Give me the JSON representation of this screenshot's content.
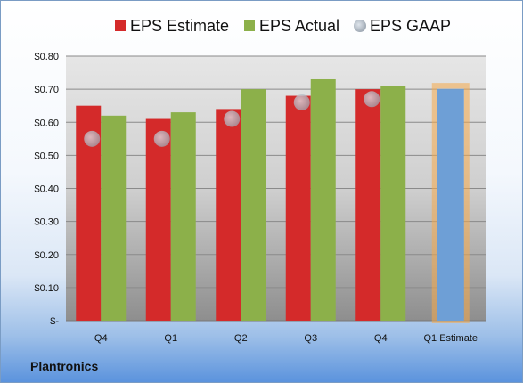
{
  "company": "Plantronics",
  "chart_data": {
    "type": "bar",
    "categories": [
      "Q4",
      "Q1",
      "Q2",
      "Q3",
      "Q4",
      "Q1 Estimate"
    ],
    "series": [
      {
        "name": "EPS Estimate",
        "values": [
          0.65,
          0.61,
          0.64,
          0.68,
          0.7,
          null
        ],
        "color": "#d42a2a"
      },
      {
        "name": "EPS Actual",
        "values": [
          0.62,
          0.63,
          0.7,
          0.73,
          0.71,
          null
        ],
        "color": "#8cb04a"
      },
      {
        "name": "EPS GAAP",
        "values": [
          0.55,
          0.55,
          0.61,
          0.66,
          0.67,
          null
        ],
        "color": "#c3ccd6",
        "marker": "circle"
      },
      {
        "name": "Q1 Estimate",
        "values": [
          null,
          null,
          null,
          null,
          null,
          0.7
        ],
        "color": "#6e9fd6",
        "border": "#f5a94a"
      }
    ],
    "yticks": [
      "$-",
      "$0.10",
      "$0.20",
      "$0.30",
      "$0.40",
      "$0.50",
      "$0.60",
      "$0.70",
      "$0.80"
    ],
    "ylim": [
      0,
      0.8
    ],
    "grid": true,
    "legend": "top"
  }
}
